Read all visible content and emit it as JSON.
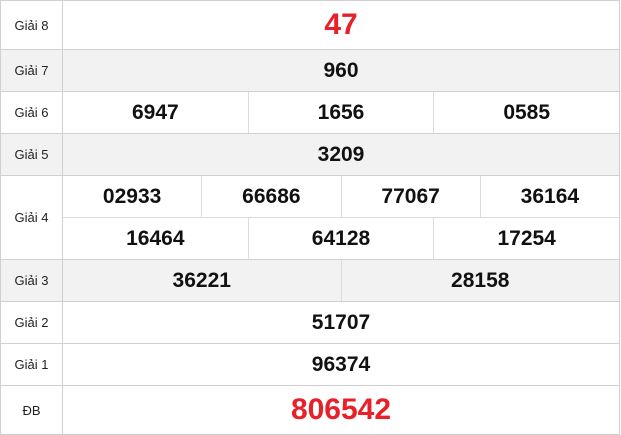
{
  "prizes": {
    "g8": {
      "label": "Giải 8",
      "values": [
        "47"
      ]
    },
    "g7": {
      "label": "Giải 7",
      "values": [
        "960"
      ]
    },
    "g6": {
      "label": "Giải 6",
      "values": [
        "6947",
        "1656",
        "0585"
      ]
    },
    "g5": {
      "label": "Giải 5",
      "values": [
        "3209"
      ]
    },
    "g4": {
      "label": "Giải 4",
      "values": [
        "02933",
        "66686",
        "77067",
        "36164",
        "16464",
        "64128",
        "17254"
      ]
    },
    "g3": {
      "label": "Giải 3",
      "values": [
        "36221",
        "28158"
      ]
    },
    "g2": {
      "label": "Giải 2",
      "values": [
        "51707"
      ]
    },
    "g1": {
      "label": "Giải 1",
      "values": [
        "96374"
      ]
    },
    "db": {
      "label": "ĐB",
      "values": [
        "806542"
      ]
    }
  },
  "colors": {
    "highlight": "#e8202a",
    "alt_row": "#f2f2f2"
  }
}
